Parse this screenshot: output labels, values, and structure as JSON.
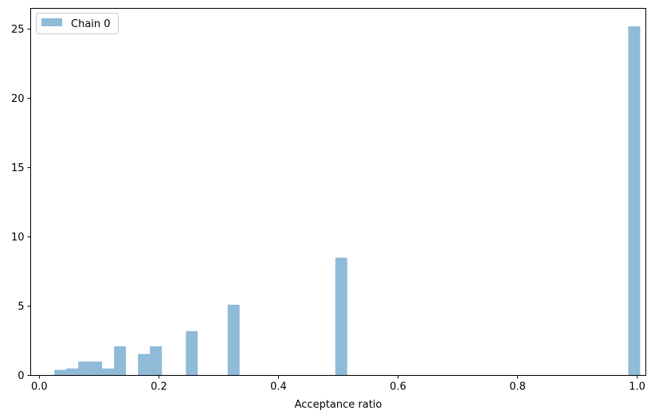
{
  "chart_data": {
    "type": "bar",
    "xlabel": "Acceptance ratio",
    "ylabel": "",
    "xlim": [
      -0.0145,
      1.0145
    ],
    "ylim": [
      0,
      26.5
    ],
    "bin_width": 0.02,
    "xticks": [
      0.0,
      0.2,
      0.4,
      0.6,
      0.8,
      1.0
    ],
    "xtick_labels": [
      "0.0",
      "0.2",
      "0.4",
      "0.6",
      "0.8",
      "1.0"
    ],
    "yticks": [
      0,
      5,
      10,
      15,
      20,
      25
    ],
    "ytick_labels": [
      "0",
      "5",
      "10",
      "15",
      "20",
      "25"
    ],
    "grid": false,
    "legend_position": "upper-left",
    "bar_color": "#1f77b4",
    "bar_opacity": 0.5,
    "series": [
      {
        "name": "Chain 0",
        "bins": [
          {
            "start": 0.025,
            "value": 0.4
          },
          {
            "start": 0.045,
            "value": 0.5
          },
          {
            "start": 0.065,
            "value": 1.0
          },
          {
            "start": 0.085,
            "value": 1.0
          },
          {
            "start": 0.105,
            "value": 0.5
          },
          {
            "start": 0.125,
            "value": 2.1
          },
          {
            "start": 0.165,
            "value": 1.55
          },
          {
            "start": 0.185,
            "value": 2.1
          },
          {
            "start": 0.245,
            "value": 3.2
          },
          {
            "start": 0.315,
            "value": 5.1
          },
          {
            "start": 0.495,
            "value": 8.5
          },
          {
            "start": 0.985,
            "value": 25.2
          }
        ]
      }
    ]
  }
}
